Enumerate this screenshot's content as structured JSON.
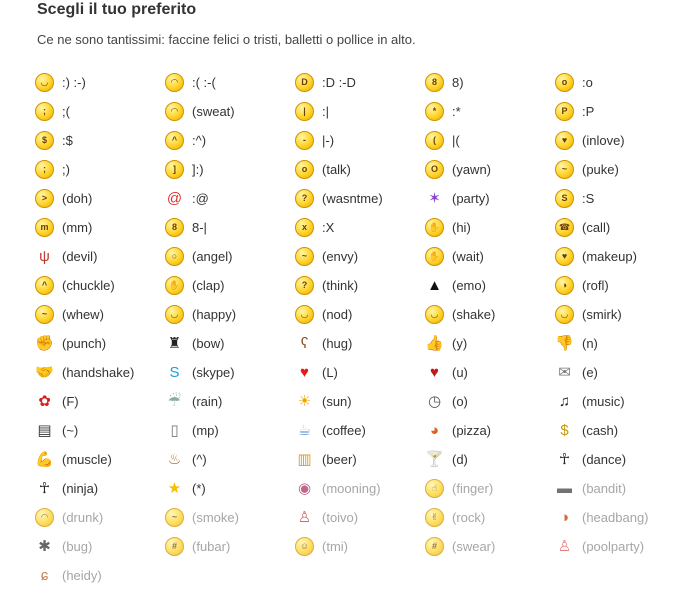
{
  "title": "Scegli il tuo preferito",
  "subtitle": "Ce ne sono tantissimi: faccine felici o tristi, balletti o pollice in alto.",
  "rows": [
    [
      {
        "label": ":) :-)",
        "icon": "smile-icon",
        "g": "◡",
        "dim": false
      },
      {
        "label": ":( :-(",
        "icon": "sad-icon",
        "g": "◠",
        "dim": false
      },
      {
        "label": ":D :-D",
        "icon": "grin-icon",
        "g": "D",
        "dim": false
      },
      {
        "label": "8)",
        "icon": "cool-icon",
        "g": "8",
        "dim": false
      },
      {
        "label": ":o",
        "icon": "surprised-icon",
        "g": "o",
        "dim": false
      }
    ],
    [
      {
        "label": ";(",
        "icon": "crying-icon",
        "g": ";",
        "dim": false
      },
      {
        "label": "(sweat)",
        "icon": "sweat-icon",
        "g": "◠",
        "dim": false
      },
      {
        "label": ":|",
        "icon": "speechless-icon",
        "g": "|",
        "dim": false
      },
      {
        "label": ":*",
        "icon": "kiss-icon",
        "g": "*",
        "dim": false
      },
      {
        "label": ":P",
        "icon": "tongue-icon",
        "g": "P",
        "dim": false
      }
    ],
    [
      {
        "label": ":$",
        "icon": "blush-icon",
        "g": "$",
        "dim": false
      },
      {
        "label": ":^)",
        "icon": "wondering-icon",
        "g": "^",
        "dim": false
      },
      {
        "label": "|-)",
        "icon": "sleepy-icon",
        "g": "-",
        "dim": false
      },
      {
        "label": "|(",
        "icon": "dull-icon",
        "g": "(",
        "dim": false
      },
      {
        "label": "(inlove)",
        "icon": "inlove-icon",
        "g": "♥",
        "dim": false
      }
    ],
    [
      {
        "label": ";)",
        "icon": "wink-icon",
        "g": ";",
        "dim": false
      },
      {
        "label": "]:)",
        "icon": "evilgrin-icon",
        "g": "]",
        "dim": false
      },
      {
        "label": "(talk)",
        "icon": "talk-icon",
        "g": "o",
        "dim": false
      },
      {
        "label": "(yawn)",
        "icon": "yawn-icon",
        "g": "O",
        "dim": false
      },
      {
        "label": "(puke)",
        "icon": "puke-icon",
        "g": "~",
        "dim": false
      }
    ],
    [
      {
        "label": "(doh)",
        "icon": "doh-icon",
        "g": ">",
        "dim": false
      },
      {
        "label": ":@",
        "icon": "angry-icon",
        "g": "@",
        "dim": false
      },
      {
        "label": "(wasntme)",
        "icon": "wasntme-icon",
        "g": "?",
        "dim": false
      },
      {
        "label": "(party)",
        "icon": "party-icon",
        "g": "✶",
        "dim": false
      },
      {
        "label": ":S",
        "icon": "worried-icon",
        "g": "S",
        "dim": false
      }
    ],
    [
      {
        "label": "(mm)",
        "icon": "mmm-icon",
        "g": "m",
        "dim": false
      },
      {
        "label": "8-|",
        "icon": "nerd-icon",
        "g": "8",
        "dim": false
      },
      {
        "label": ":X",
        "icon": "lipssealed-icon",
        "g": "x",
        "dim": false
      },
      {
        "label": "(hi)",
        "icon": "hi-icon",
        "g": "✋",
        "dim": false
      },
      {
        "label": "(call)",
        "icon": "call-icon",
        "g": "☎",
        "dim": false
      }
    ],
    [
      {
        "label": "(devil)",
        "icon": "devil-icon",
        "g": "ψ",
        "dim": false
      },
      {
        "label": "(angel)",
        "icon": "angel-icon",
        "g": "○",
        "dim": false
      },
      {
        "label": "(envy)",
        "icon": "envy-icon",
        "g": "~",
        "dim": false
      },
      {
        "label": "(wait)",
        "icon": "wait-icon",
        "g": "✋",
        "dim": false
      },
      {
        "label": "(makeup)",
        "icon": "makeup-icon",
        "g": "♥",
        "dim": false
      }
    ],
    [
      {
        "label": "(chuckle)",
        "icon": "chuckle-icon",
        "g": "^",
        "dim": false
      },
      {
        "label": "(clap)",
        "icon": "clap-icon",
        "g": "✋",
        "dim": false
      },
      {
        "label": "(think)",
        "icon": "think-icon",
        "g": "?",
        "dim": false
      },
      {
        "label": "(emo)",
        "icon": "emo-icon",
        "g": "▲",
        "dim": false
      },
      {
        "label": "(rofl)",
        "icon": "rofl-icon",
        "g": "◑",
        "dim": false
      }
    ],
    [
      {
        "label": "(whew)",
        "icon": "whew-icon",
        "g": "~",
        "dim": false
      },
      {
        "label": "(happy)",
        "icon": "happy-icon",
        "g": "◡",
        "dim": false
      },
      {
        "label": "(nod)",
        "icon": "nod-icon",
        "g": "◡",
        "dim": false
      },
      {
        "label": "(shake)",
        "icon": "shake-icon",
        "g": "◡",
        "dim": false
      },
      {
        "label": "(smirk)",
        "icon": "smirk-icon",
        "g": "◡",
        "dim": false
      }
    ],
    [
      {
        "label": "(punch)",
        "icon": "punch-icon",
        "g": "✊",
        "dim": false
      },
      {
        "label": "(bow)",
        "icon": "bow-icon",
        "g": "♜",
        "dim": false
      },
      {
        "label": "(hug)",
        "icon": "hug-icon",
        "g": "ʕ",
        "dim": false
      },
      {
        "label": "(y)",
        "icon": "thumbsup-icon",
        "g": "👍",
        "dim": false
      },
      {
        "label": "(n)",
        "icon": "thumbsdown-icon",
        "g": "👎",
        "dim": false
      }
    ],
    [
      {
        "label": "(handshake)",
        "icon": "handshake-icon",
        "g": "🤝",
        "dim": false
      },
      {
        "label": "(skype)",
        "icon": "skype-icon",
        "g": "S",
        "dim": false
      },
      {
        "label": "(L)",
        "icon": "heart-icon",
        "g": "♥",
        "dim": false
      },
      {
        "label": "(u)",
        "icon": "brokenheart-icon",
        "g": "♥",
        "dim": false
      },
      {
        "label": "(e)",
        "icon": "mail-icon",
        "g": "✉",
        "dim": false
      }
    ],
    [
      {
        "label": "(F)",
        "icon": "flower-icon",
        "g": "✿",
        "dim": false
      },
      {
        "label": "(rain)",
        "icon": "rain-icon",
        "g": "☔",
        "dim": false
      },
      {
        "label": "(sun)",
        "icon": "sun-icon",
        "g": "☀",
        "dim": false
      },
      {
        "label": "(o)",
        "icon": "clock-icon",
        "g": "◷",
        "dim": false
      },
      {
        "label": "(music)",
        "icon": "music-icon",
        "g": "♫",
        "dim": false
      }
    ],
    [
      {
        "label": "(~)",
        "icon": "movie-icon",
        "g": "▤",
        "dim": false
      },
      {
        "label": "(mp)",
        "icon": "phone-icon",
        "g": "▯",
        "dim": false
      },
      {
        "label": "(coffee)",
        "icon": "coffee-icon",
        "g": "☕",
        "dim": false
      },
      {
        "label": "(pizza)",
        "icon": "pizza-icon",
        "g": "◕",
        "dim": false
      },
      {
        "label": "(cash)",
        "icon": "cash-icon",
        "g": "$",
        "dim": false
      }
    ],
    [
      {
        "label": "(muscle)",
        "icon": "muscle-icon",
        "g": "💪",
        "dim": false
      },
      {
        "label": "(^)",
        "icon": "cake-icon",
        "g": "♨",
        "dim": false
      },
      {
        "label": "(beer)",
        "icon": "beer-icon",
        "g": "▥",
        "dim": false
      },
      {
        "label": "(d)",
        "icon": "drink-icon",
        "g": "🍸",
        "dim": false
      },
      {
        "label": "(dance)",
        "icon": "dance-icon",
        "g": "☥",
        "dim": false
      }
    ],
    [
      {
        "label": "(ninja)",
        "icon": "ninja-icon",
        "g": "☥",
        "dim": false
      },
      {
        "label": "(*)",
        "icon": "star-icon",
        "g": "★",
        "dim": false
      },
      {
        "label": "(mooning)",
        "icon": "mooning-icon",
        "g": "◉",
        "dim": true
      },
      {
        "label": "(finger)",
        "icon": "finger-icon",
        "g": "☝",
        "dim": true
      },
      {
        "label": "(bandit)",
        "icon": "bandit-icon",
        "g": "▬",
        "dim": true
      }
    ],
    [
      {
        "label": "(drunk)",
        "icon": "drunk-icon",
        "g": "◠",
        "dim": true
      },
      {
        "label": "(smoke)",
        "icon": "smoke-icon",
        "g": "~",
        "dim": true
      },
      {
        "label": "(toivo)",
        "icon": "toivo-icon",
        "g": "♙",
        "dim": true
      },
      {
        "label": "(rock)",
        "icon": "rock-icon",
        "g": "✌",
        "dim": true
      },
      {
        "label": "(headbang)",
        "icon": "headbang-icon",
        "g": "◑",
        "dim": true
      }
    ],
    [
      {
        "label": "(bug)",
        "icon": "bug-icon",
        "g": "✱",
        "dim": true
      },
      {
        "label": "(fubar)",
        "icon": "fubar-icon",
        "g": "#",
        "dim": true
      },
      {
        "label": "(tmi)",
        "icon": "tmi-icon",
        "g": "☺",
        "dim": true
      },
      {
        "label": "(swear)",
        "icon": "swear-icon",
        "g": "#",
        "dim": true
      },
      {
        "label": "(poolparty)",
        "icon": "poolparty-icon",
        "g": "♙",
        "dim": true
      }
    ],
    [
      {
        "label": "(heidy)",
        "icon": "heidy-icon",
        "g": "ɕ",
        "dim": true
      }
    ]
  ],
  "colors": {
    "text": "#333333",
    "disabled_text": "#a6a6a6",
    "smiley_yellow": "#ffd42a",
    "smiley_border": "#d09200"
  }
}
